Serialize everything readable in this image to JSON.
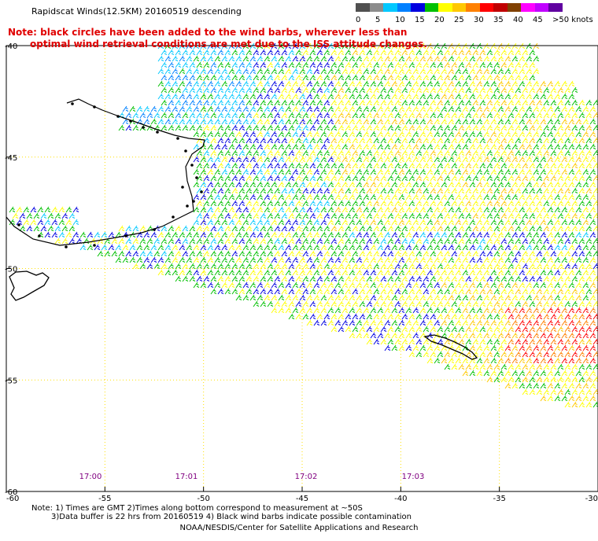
{
  "title": "Rapidscat Winds(12.5KM) 20160519 descending",
  "note": {
    "line1": "Note: black circles have been added to the wind barbs, wherever less than",
    "line2": "optimal wind retrieval conditions are met due to the ISS attitude changes."
  },
  "legend": {
    "labels": [
      "0",
      "5",
      "10",
      "15",
      "20",
      "25",
      "30",
      "35",
      "40",
      "45",
      ">50 knots"
    ],
    "colors": [
      "#505050",
      "#8c8c8c",
      "#00c8ff",
      "#0080ff",
      "#0000e0",
      "#00c000",
      "#ffff00",
      "#ffc800",
      "#ff8000",
      "#ff0000",
      "#c00000",
      "#804000",
      "#ff00ff",
      "#c000ff",
      "#6000a0"
    ]
  },
  "map": {
    "lat_labels": [
      "-40",
      "-45",
      "-50",
      "-55",
      "-60"
    ],
    "lon_labels": [
      "-60",
      "-55",
      "-50",
      "-45",
      "-40",
      "-35",
      "-30"
    ],
    "time_labels": [
      "17:00",
      "17:01",
      "17:02",
      "17:03"
    ],
    "time_color": "#800080",
    "grid_color": "#ffe000"
  },
  "footer": {
    "line1": "Note: 1) Times are GMT 2)Times along bottom correspond to measurement at ~50S",
    "line2": "3)Data buffer is 22 hrs from 20160519 4) Black wind barbs indicate possible contamination",
    "line3": "NOAA/NESDIS/Center for Satellite Applications and Research"
  }
}
